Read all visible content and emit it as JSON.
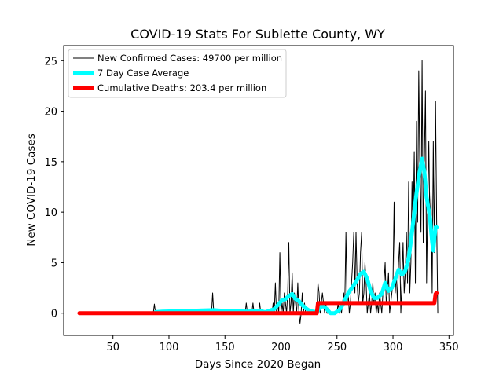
{
  "chart_data": {
    "type": "line",
    "title": "COVID-19 Stats For Sublette County, WY",
    "xlabel": "Days Since 2020 Began",
    "ylabel": "New COVID-19 Cases",
    "xlim": [
      6,
      354
    ],
    "ylim": [
      -2.2,
      26.5
    ],
    "x_ticks": [
      50,
      100,
      150,
      200,
      250,
      300,
      350
    ],
    "y_ticks": [
      0,
      5,
      10,
      15,
      20,
      25
    ],
    "grid": false,
    "legend_position": "top-left",
    "series": [
      {
        "name": "New Confirmed Cases: 49700 per million",
        "color": "#000000",
        "points": [
          [
            20,
            0
          ],
          [
            86,
            0
          ],
          [
            87,
            0.9
          ],
          [
            88,
            0
          ],
          [
            138,
            0
          ],
          [
            139,
            2
          ],
          [
            140,
            0
          ],
          [
            168,
            0
          ],
          [
            169,
            1
          ],
          [
            170,
            0
          ],
          [
            174,
            0
          ],
          [
            175,
            1
          ],
          [
            176,
            0
          ],
          [
            180,
            0
          ],
          [
            181,
            1
          ],
          [
            182,
            0
          ],
          [
            192,
            0
          ],
          [
            193,
            1
          ],
          [
            194,
            0
          ],
          [
            195,
            3
          ],
          [
            196,
            0
          ],
          [
            197,
            1
          ],
          [
            198,
            0
          ],
          [
            199,
            6
          ],
          [
            200,
            0
          ],
          [
            201,
            1
          ],
          [
            202,
            0
          ],
          [
            203,
            2
          ],
          [
            204,
            1
          ],
          [
            205,
            0
          ],
          [
            206,
            2
          ],
          [
            207,
            7
          ],
          [
            208,
            0
          ],
          [
            209,
            1
          ],
          [
            210,
            4
          ],
          [
            211,
            0
          ],
          [
            212,
            2
          ],
          [
            213,
            1
          ],
          [
            214,
            0
          ],
          [
            215,
            3
          ],
          [
            216,
            0
          ],
          [
            217,
            -1
          ],
          [
            218,
            0
          ],
          [
            219,
            2
          ],
          [
            220,
            0
          ],
          [
            221,
            1
          ],
          [
            222,
            0
          ],
          [
            232,
            0
          ],
          [
            233,
            3
          ],
          [
            234,
            2
          ],
          [
            235,
            0
          ],
          [
            236,
            1
          ],
          [
            237,
            2
          ],
          [
            238,
            1
          ],
          [
            239,
            0
          ],
          [
            240,
            1
          ],
          [
            241,
            0
          ],
          [
            250,
            0
          ],
          [
            251,
            1
          ],
          [
            252,
            0
          ],
          [
            253,
            1
          ],
          [
            254,
            0
          ],
          [
            255,
            1
          ],
          [
            256,
            2
          ],
          [
            257,
            1
          ],
          [
            258,
            8
          ],
          [
            259,
            1
          ],
          [
            260,
            2
          ],
          [
            261,
            0
          ],
          [
            262,
            1
          ],
          [
            263,
            3
          ],
          [
            264,
            5
          ],
          [
            265,
            8
          ],
          [
            266,
            2
          ],
          [
            267,
            8
          ],
          [
            268,
            3
          ],
          [
            269,
            1
          ],
          [
            270,
            2
          ],
          [
            271,
            6
          ],
          [
            272,
            8
          ],
          [
            273,
            1
          ],
          [
            274,
            2
          ],
          [
            275,
            5
          ],
          [
            276,
            3
          ],
          [
            277,
            0
          ],
          [
            278,
            1
          ],
          [
            279,
            2
          ],
          [
            280,
            0
          ],
          [
            281,
            1
          ],
          [
            282,
            3
          ],
          [
            283,
            1
          ],
          [
            284,
            2
          ],
          [
            285,
            0
          ],
          [
            286,
            1
          ],
          [
            287,
            0
          ],
          [
            288,
            2
          ],
          [
            289,
            1
          ],
          [
            290,
            0
          ],
          [
            291,
            2
          ],
          [
            292,
            3
          ],
          [
            293,
            5
          ],
          [
            294,
            1
          ],
          [
            295,
            2
          ],
          [
            296,
            4
          ],
          [
            297,
            0
          ],
          [
            298,
            1
          ],
          [
            299,
            2
          ],
          [
            300,
            3
          ],
          [
            301,
            11
          ],
          [
            302,
            2
          ],
          [
            303,
            4
          ],
          [
            304,
            1
          ],
          [
            305,
            5
          ],
          [
            306,
            7
          ],
          [
            307,
            0
          ],
          [
            308,
            3
          ],
          [
            309,
            7
          ],
          [
            310,
            2
          ],
          [
            311,
            4
          ],
          [
            312,
            8
          ],
          [
            313,
            3
          ],
          [
            314,
            13
          ],
          [
            315,
            2
          ],
          [
            316,
            5
          ],
          [
            317,
            13
          ],
          [
            318,
            8
          ],
          [
            319,
            16
          ],
          [
            320,
            3
          ],
          [
            321,
            19
          ],
          [
            322,
            9
          ],
          [
            323,
            24
          ],
          [
            324,
            14
          ],
          [
            325,
            8
          ],
          [
            326,
            25
          ],
          [
            327,
            7
          ],
          [
            328,
            15
          ],
          [
            329,
            22
          ],
          [
            330,
            3
          ],
          [
            331,
            11
          ],
          [
            332,
            17
          ],
          [
            333,
            8
          ],
          [
            334,
            12
          ],
          [
            335,
            2
          ],
          [
            336,
            17
          ],
          [
            337,
            6
          ],
          [
            338,
            21
          ],
          [
            339,
            9
          ],
          [
            340,
            0
          ]
        ]
      },
      {
        "name": "7 Day Case Average",
        "color": "#00ffff",
        "points": [
          [
            88,
            0.1
          ],
          [
            94,
            0.15
          ],
          [
            140,
            0.3
          ],
          [
            146,
            0.25
          ],
          [
            170,
            0.15
          ],
          [
            176,
            0.2
          ],
          [
            182,
            0.2
          ],
          [
            186,
            0.1
          ],
          [
            194,
            0.4
          ],
          [
            198,
            0.9
          ],
          [
            201,
            1.3
          ],
          [
            204,
            1.4
          ],
          [
            207,
            1.7
          ],
          [
            210,
            1.9
          ],
          [
            213,
            1.4
          ],
          [
            216,
            1.2
          ],
          [
            218,
            0.9
          ],
          [
            222,
            0.5
          ],
          [
            226,
            0.2
          ],
          [
            232,
            0.1
          ],
          [
            235,
            0.6
          ],
          [
            238,
            0.7
          ],
          [
            241,
            0.4
          ],
          [
            244,
            0
          ],
          [
            248,
            0
          ],
          [
            252,
            0.3
          ],
          [
            256,
            1
          ],
          [
            260,
            2
          ],
          [
            264,
            2.6
          ],
          [
            268,
            3.3
          ],
          [
            271,
            3.9
          ],
          [
            274,
            4.1
          ],
          [
            277,
            3.4
          ],
          [
            280,
            2.2
          ],
          [
            283,
            1.5
          ],
          [
            286,
            1.5
          ],
          [
            290,
            1.9
          ],
          [
            293,
            3
          ],
          [
            296,
            2.2
          ],
          [
            299,
            2.5
          ],
          [
            302,
            3.4
          ],
          [
            305,
            4.3
          ],
          [
            308,
            3.8
          ],
          [
            311,
            4.2
          ],
          [
            314,
            5.4
          ],
          [
            317,
            8
          ],
          [
            320,
            11
          ],
          [
            323,
            13.5
          ],
          [
            326,
            15.3
          ],
          [
            328,
            14
          ],
          [
            330,
            11.5
          ],
          [
            333,
            9.5
          ],
          [
            335,
            7
          ],
          [
            336,
            6.2
          ],
          [
            338,
            8.5
          ],
          [
            339,
            8.5
          ]
        ]
      },
      {
        "name": "Cumulative Deaths: 203.4 per million",
        "color": "#ff0000",
        "points": [
          [
            20,
            0
          ],
          [
            232,
            0
          ],
          [
            233,
            1
          ],
          [
            336,
            1
          ],
          [
            337,
            1
          ],
          [
            338,
            1.9
          ],
          [
            339,
            2
          ]
        ]
      }
    ]
  }
}
